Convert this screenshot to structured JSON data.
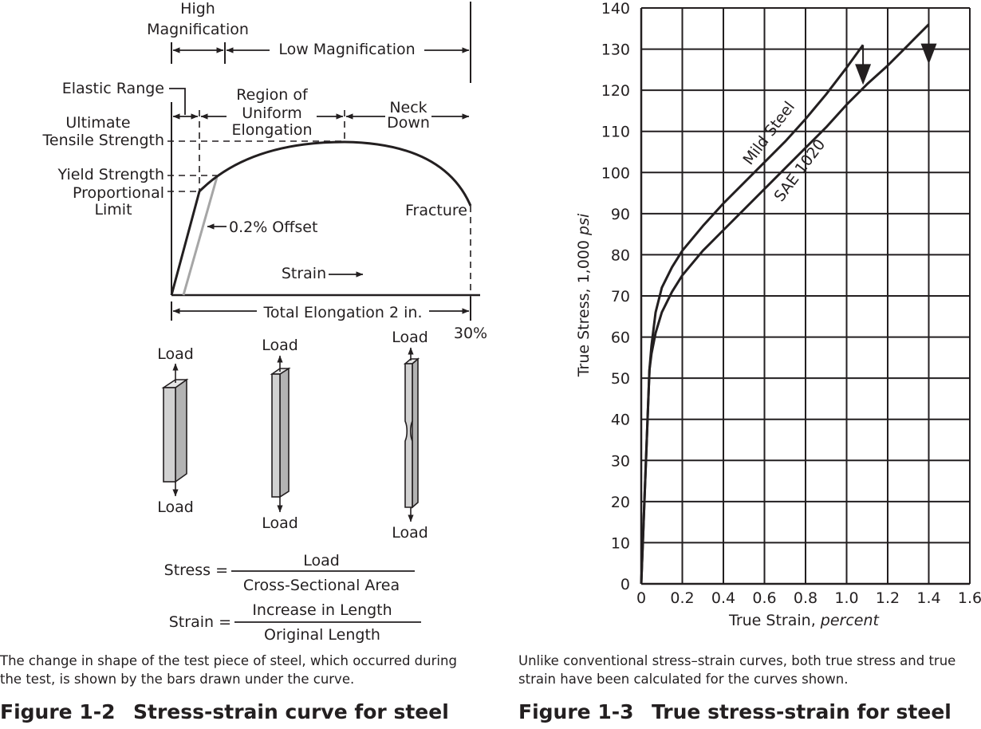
{
  "figure_left": {
    "caption": "The change in shape of the test piece of steel, which occurred during the test, is shown by the bars drawn under the curve.",
    "figure_number": "Figure 1-2",
    "figure_title": "Stress-strain curve for steel",
    "labels": {
      "high_magnification": [
        "High",
        "Magnification"
      ],
      "low_magnification": "Low Magnification",
      "elastic_range": "Elastic Range",
      "region_uniform": [
        "Region of",
        "Uniform",
        "Elongation"
      ],
      "neck_down": [
        "Neck",
        "Down"
      ],
      "ultimate": [
        "Ultimate",
        "Tensile Strength"
      ],
      "yield_strength": "Yield Strength",
      "proportional_limit": [
        "Proportional",
        "Limit"
      ],
      "offset": "0.2% Offset",
      "fracture": "Fracture",
      "strain_axis": "Strain",
      "total_elongation": "Total Elongation 2 in.",
      "end_percent": "30%"
    },
    "load_label": "Load",
    "formulas": [
      {
        "lhs": "Stress =",
        "numerator": "Load",
        "denominator": "Cross-Sectional Area"
      },
      {
        "lhs": "Strain =",
        "numerator": "Increase in Length",
        "denominator": "Original Length"
      }
    ]
  },
  "figure_right": {
    "caption": "Unlike conventional stress–strain curves, both true stress and true strain have been calculated for the curves shown.",
    "figure_number": "Figure 1-3",
    "figure_title": "True stress-strain for steel",
    "ylabel_main": "True Stress, 1,000 ",
    "ylabel_unit": "psi",
    "xlabel_main": "True Strain, ",
    "xlabel_unit": "percent"
  },
  "chart_data": {
    "type": "line",
    "xlim": [
      0,
      1.6
    ],
    "ylim": [
      0,
      140
    ],
    "xticks": [
      0,
      0.2,
      0.4,
      0.6,
      0.8,
      1.0,
      1.2,
      1.4,
      1.6
    ],
    "xtick_labels": [
      "0",
      "0.2",
      "0.4",
      "0.6",
      "0.8",
      "1.0",
      "1.2",
      "1.4",
      "1.6"
    ],
    "yticks": [
      0,
      10,
      20,
      30,
      40,
      50,
      60,
      70,
      80,
      90,
      100,
      110,
      120,
      130,
      140
    ],
    "grid": true,
    "series": [
      {
        "name": "Mild Steel",
        "x": [
          0,
          0.04,
          0.05,
          0.07,
          0.1,
          0.15,
          0.2,
          0.3,
          0.4,
          0.5,
          0.6,
          0.7,
          0.8,
          0.9,
          1.0,
          1.08
        ],
        "y": [
          0,
          52,
          58,
          66,
          72,
          77,
          81,
          87,
          92.5,
          97.5,
          102.5,
          107.5,
          113,
          119,
          125.5,
          131
        ]
      },
      {
        "name": "SAE 1020",
        "x": [
          0,
          0.04,
          0.05,
          0.07,
          0.1,
          0.15,
          0.2,
          0.3,
          0.4,
          0.5,
          0.6,
          0.7,
          0.8,
          0.9,
          1.0,
          1.1,
          1.2,
          1.3,
          1.4
        ],
        "y": [
          0,
          52,
          56,
          61,
          66,
          71,
          75,
          81,
          86,
          91,
          96,
          101,
          106,
          111,
          116.5,
          121.5,
          126,
          131,
          136
        ]
      }
    ],
    "fracture_arrows_x": [
      1.08,
      1.4
    ]
  }
}
